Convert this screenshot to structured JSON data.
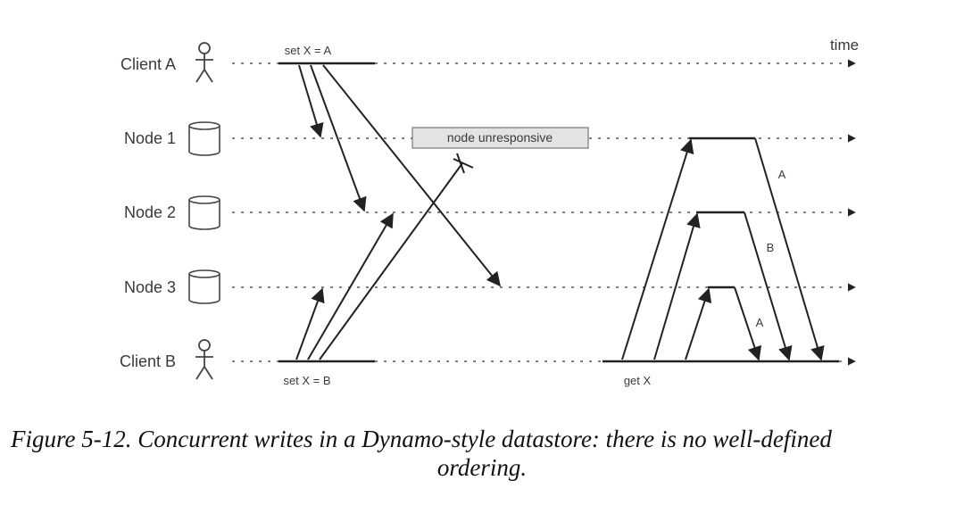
{
  "diagram": {
    "time_label": "time",
    "lanes": [
      {
        "label": "Client A",
        "icon": "person-icon"
      },
      {
        "label": "Node 1",
        "icon": "database-icon"
      },
      {
        "label": "Node 2",
        "icon": "database-icon"
      },
      {
        "label": "Node 3",
        "icon": "database-icon"
      },
      {
        "label": "Client B",
        "icon": "person-icon"
      }
    ],
    "client_a_op": "set X = A",
    "client_b_op": "set X = B",
    "read_op": "get X",
    "unresponsive_label": "node unresponsive",
    "response_labels": [
      "A",
      "B",
      "A"
    ]
  },
  "caption": {
    "line1": "Figure 5-12. Concurrent writes in a Dynamo-style datastore: there is no well-defined",
    "line2": "ordering."
  }
}
